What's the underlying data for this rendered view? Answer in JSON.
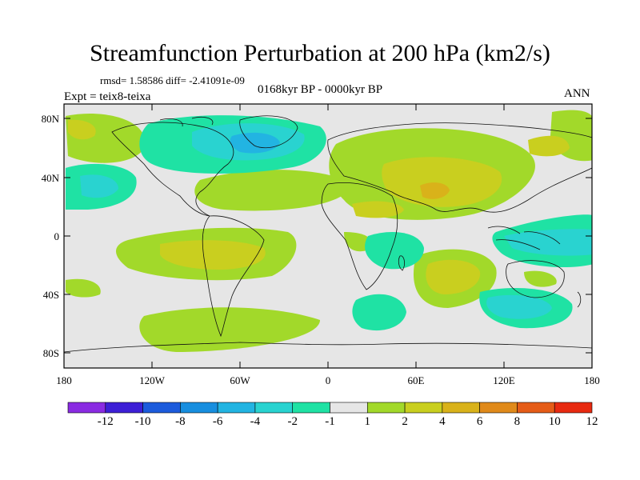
{
  "title": "Streamfunction Perturbation at 200 hPa (km2/s)",
  "stats_line": "rmsd= 1.58586 diff= -2.41091e-09",
  "experiment_label": "Expt = teix8-teixa",
  "period_label": "0168kyr BP - 0000kyr BP",
  "season_label": "ANN",
  "lat_labels": [
    "80N",
    "40N",
    "0",
    "40S",
    "80S"
  ],
  "lon_labels": [
    "180",
    "120W",
    "60W",
    "0",
    "60E",
    "120E",
    "180"
  ],
  "colorbar": {
    "labels": [
      "-12",
      "-10",
      "-8",
      "-6",
      "-4",
      "-2",
      "-1",
      "1",
      "2",
      "4",
      "6",
      "8",
      "10",
      "12"
    ],
    "colors": [
      "#8a2be2",
      "#3d1fd6",
      "#1c5bdc",
      "#178edf",
      "#22b4e2",
      "#29d3d0",
      "#1fe2a4",
      "#e6e6e6",
      "#a2d92a",
      "#c9cf1f",
      "#d9b21a",
      "#e08a1a",
      "#e55c17",
      "#e82a10"
    ]
  },
  "map_colors": {
    "background": "#e6e6e6",
    "pos1": "#a2d92a",
    "pos2": "#c9cf1f",
    "pos3": "#d9b21a",
    "neg1": "#1fe2a4",
    "neg2": "#29d3d0",
    "neg3": "#22b4e2"
  }
}
